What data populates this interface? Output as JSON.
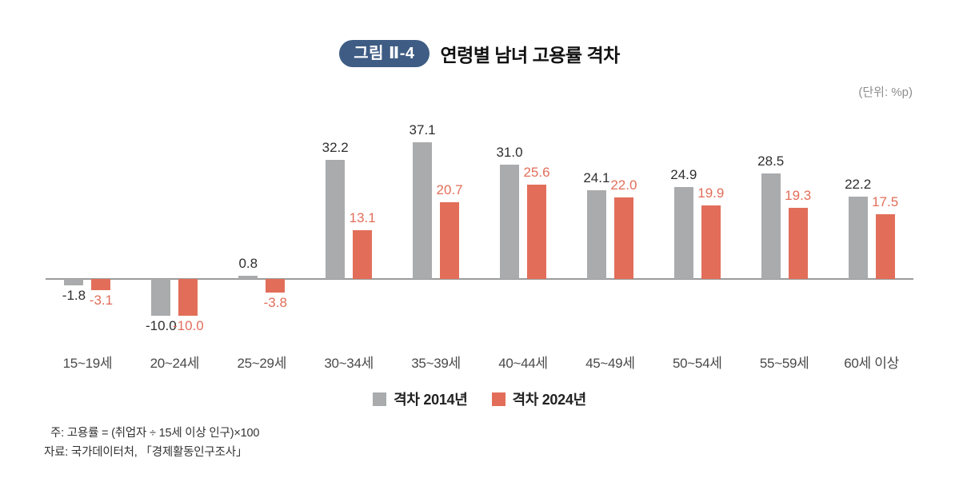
{
  "header": {
    "badge": "그림 Ⅱ-4",
    "badge_color": "#3e5c84",
    "title": "연령별 남녀 고용률 격차",
    "unit": "(단위: %p)"
  },
  "chart_data": {
    "type": "bar",
    "title": "연령별 남녀 고용률 격차",
    "unit": "%p",
    "categories": [
      "15~19세",
      "20~24세",
      "25~29세",
      "30~34세",
      "35~39세",
      "40~44세",
      "45~49세",
      "50~54세",
      "55~59세",
      "60세 이상"
    ],
    "series": [
      {
        "name": "격차 2014년",
        "color": "#a9abad",
        "label_color": "#2f2f2f",
        "values": [
          -1.8,
          -10.0,
          0.8,
          32.2,
          37.1,
          31.0,
          24.1,
          24.9,
          28.5,
          22.2
        ]
      },
      {
        "name": "격차 2024년",
        "color": "#e26e5a",
        "label_color": "#e26e5a",
        "values": [
          -3.1,
          -10.0,
          -3.8,
          13.1,
          20.7,
          25.6,
          22.0,
          19.9,
          19.3,
          17.5
        ]
      }
    ],
    "ylim": [
      -14,
      44
    ],
    "baseline": 0,
    "grid": false,
    "legend_position": "bottom"
  },
  "footnotes": {
    "note": "주: 고용률 = (취업자 ÷ 15세 이상 인구)×100",
    "source": "자료: 국가데이터처, 「경제활동인구조사」"
  }
}
